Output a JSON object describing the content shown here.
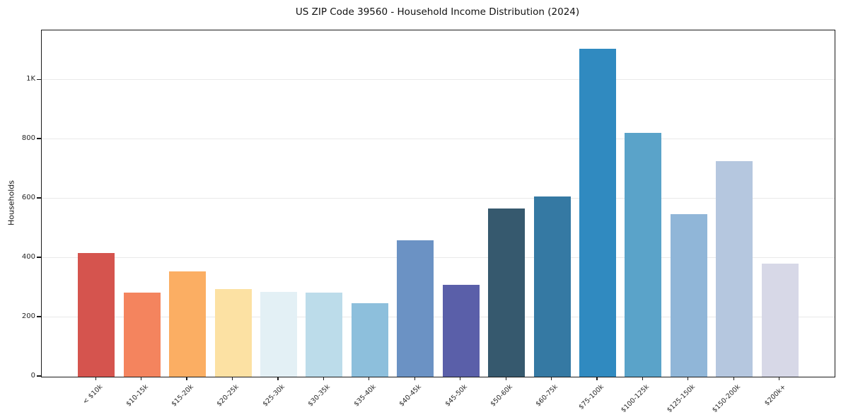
{
  "chart_data": {
    "type": "bar",
    "title": "US ZIP Code 39560 - Household Income Distribution (2024)",
    "ylabel": "Households",
    "xlabel": "",
    "categories": [
      "< $10k",
      "$10-15k",
      "$15-20k",
      "$20-25k",
      "$25-30k",
      "$30-35k",
      "$35-40k",
      "$40-45k",
      "$45-50k",
      "$50-60k",
      "$60-75k",
      "$75-100k",
      "$100-125k",
      "$125-150k",
      "$150-200k",
      "$200k+"
    ],
    "values": [
      417,
      284,
      355,
      296,
      287,
      283,
      247,
      460,
      309,
      568,
      607,
      1106,
      822,
      549,
      727,
      380
    ],
    "bar_colors": [
      "#d5544e",
      "#f4845e",
      "#fbae63",
      "#fce1a3",
      "#e3f0f5",
      "#bcdcea",
      "#8dbfdc",
      "#6b92c4",
      "#5a5fa9",
      "#36596e",
      "#3579a3",
      "#308ac0",
      "#5aa3c9",
      "#90b6d8",
      "#b5c7df",
      "#d7d8e7"
    ],
    "yticks": {
      "values": [
        0,
        200,
        400,
        600,
        800,
        1000
      ],
      "labels": [
        "0",
        "200",
        "400",
        "600",
        "800",
        "1K"
      ]
    },
    "ylim": [
      0,
      1167
    ],
    "grid": "horizontal",
    "grid_color": "#e9e9e9",
    "axis_color": "#1a1a1a",
    "legend": "none"
  }
}
